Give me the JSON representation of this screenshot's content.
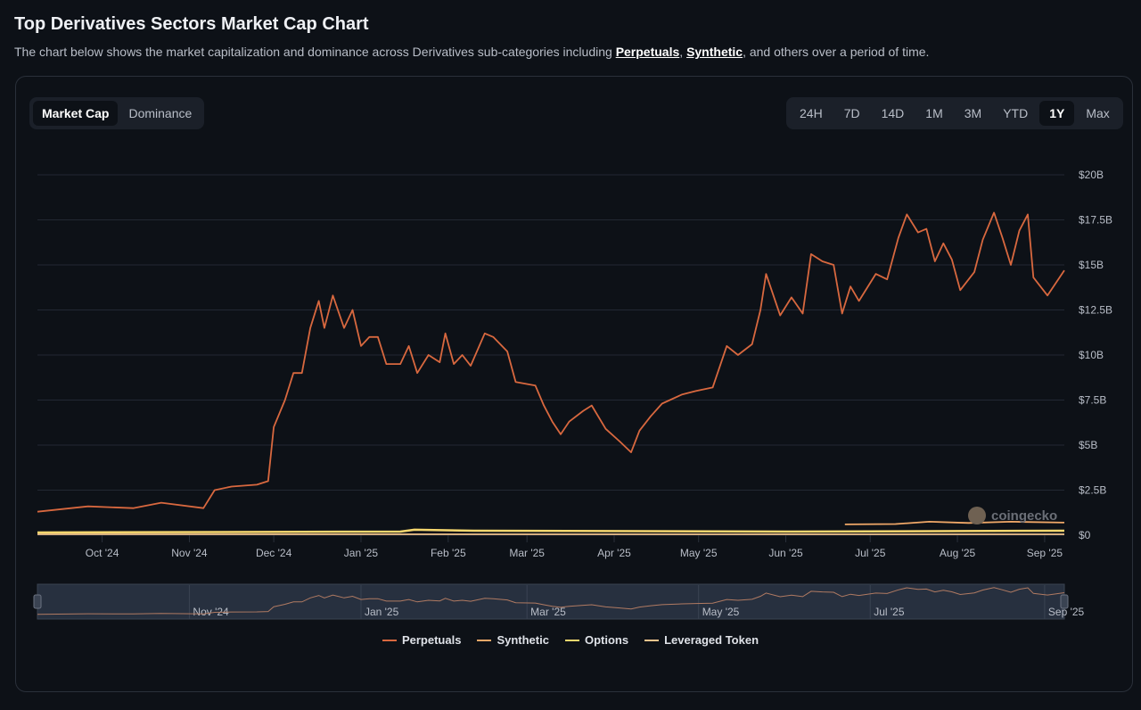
{
  "header": {
    "title": "Top Derivatives Sectors Market Cap Chart",
    "subtitle_pre": "The chart below shows the market capitalization and dominance across Derivatives sub-categories including ",
    "link1": "Perpetuals",
    "sep": ", ",
    "link2": "Synthetic",
    "subtitle_post": ", and others over a period of time."
  },
  "view_tabs": [
    {
      "label": "Market Cap",
      "active": true
    },
    {
      "label": "Dominance",
      "active": false
    }
  ],
  "range_tabs": [
    {
      "label": "24H"
    },
    {
      "label": "7D"
    },
    {
      "label": "14D"
    },
    {
      "label": "1M"
    },
    {
      "label": "3M"
    },
    {
      "label": "YTD"
    },
    {
      "label": "1Y",
      "active": true
    },
    {
      "label": "Max"
    }
  ],
  "watermark": "coingecko",
  "chart_data": {
    "type": "line",
    "title": "",
    "xlim": [
      "2024-09-08",
      "2025-09-08"
    ],
    "ylim": [
      0,
      20
    ],
    "y_unit": "B USD",
    "grid": true,
    "legend_placement": "bottom",
    "y_ticks": [
      "$0",
      "$2.5B",
      "$5B",
      "$7.5B",
      "$10B",
      "$12.5B",
      "$15B",
      "$17.5B",
      "$20B"
    ],
    "y_tick_values": [
      0,
      2.5,
      5,
      7.5,
      10,
      12.5,
      15,
      17.5,
      20
    ],
    "x_ticks": [
      {
        "label": "Oct '24",
        "date": "2024-10-01"
      },
      {
        "label": "Nov '24",
        "date": "2024-11-01"
      },
      {
        "label": "Dec '24",
        "date": "2024-12-01"
      },
      {
        "label": "Jan '25",
        "date": "2025-01-01"
      },
      {
        "label": "Feb '25",
        "date": "2025-02-01"
      },
      {
        "label": "Mar '25",
        "date": "2025-03-01"
      },
      {
        "label": "Apr '25",
        "date": "2025-04-01"
      },
      {
        "label": "May '25",
        "date": "2025-05-01"
      },
      {
        "label": "Jun '25",
        "date": "2025-06-01"
      },
      {
        "label": "Jul '25",
        "date": "2025-07-01"
      },
      {
        "label": "Aug '25",
        "date": "2025-08-01"
      },
      {
        "label": "Sep '25",
        "date": "2025-09-01"
      }
    ],
    "navigator_ticks": [
      {
        "label": "Nov '24",
        "date": "2024-11-01"
      },
      {
        "label": "Jan '25",
        "date": "2025-01-01"
      },
      {
        "label": "Mar '25",
        "date": "2025-03-01"
      },
      {
        "label": "May '25",
        "date": "2025-05-01"
      },
      {
        "label": "Jul '25",
        "date": "2025-07-01"
      },
      {
        "label": "Sep '25",
        "date": "2025-09-01"
      }
    ],
    "series": [
      {
        "name": "Perpetuals",
        "color": "#d8683f",
        "points": [
          [
            "2024-09-08",
            1.3
          ],
          [
            "2024-09-26",
            1.6
          ],
          [
            "2024-10-12",
            1.5
          ],
          [
            "2024-10-22",
            1.8
          ],
          [
            "2024-11-06",
            1.5
          ],
          [
            "2024-11-10",
            2.5
          ],
          [
            "2024-11-16",
            2.7
          ],
          [
            "2024-11-25",
            2.8
          ],
          [
            "2024-11-29",
            3.0
          ],
          [
            "2024-12-01",
            6.0
          ],
          [
            "2024-12-05",
            7.5
          ],
          [
            "2024-12-08",
            9.0
          ],
          [
            "2024-12-11",
            9.0
          ],
          [
            "2024-12-14",
            11.5
          ],
          [
            "2024-12-17",
            13.0
          ],
          [
            "2024-12-19",
            11.5
          ],
          [
            "2024-12-22",
            13.3
          ],
          [
            "2024-12-26",
            11.5
          ],
          [
            "2024-12-29",
            12.5
          ],
          [
            "2025-01-01",
            10.5
          ],
          [
            "2025-01-04",
            11.0
          ],
          [
            "2025-01-07",
            11.0
          ],
          [
            "2025-01-10",
            9.5
          ],
          [
            "2025-01-15",
            9.5
          ],
          [
            "2025-01-18",
            10.5
          ],
          [
            "2025-01-21",
            9.0
          ],
          [
            "2025-01-25",
            10.0
          ],
          [
            "2025-01-29",
            9.6
          ],
          [
            "2025-01-31",
            11.2
          ],
          [
            "2025-02-03",
            9.5
          ],
          [
            "2025-02-06",
            10.0
          ],
          [
            "2025-02-09",
            9.4
          ],
          [
            "2025-02-14",
            11.2
          ],
          [
            "2025-02-17",
            11.0
          ],
          [
            "2025-02-22",
            10.2
          ],
          [
            "2025-02-25",
            8.5
          ],
          [
            "2025-03-04",
            8.3
          ],
          [
            "2025-03-07",
            7.2
          ],
          [
            "2025-03-10",
            6.3
          ],
          [
            "2025-03-13",
            5.6
          ],
          [
            "2025-03-16",
            6.3
          ],
          [
            "2025-03-21",
            6.9
          ],
          [
            "2025-03-24",
            7.2
          ],
          [
            "2025-03-29",
            5.9
          ],
          [
            "2025-04-03",
            5.2
          ],
          [
            "2025-04-07",
            4.6
          ],
          [
            "2025-04-10",
            5.8
          ],
          [
            "2025-04-14",
            6.6
          ],
          [
            "2025-04-18",
            7.3
          ],
          [
            "2025-04-25",
            7.8
          ],
          [
            "2025-04-30",
            8.0
          ],
          [
            "2025-05-06",
            8.2
          ],
          [
            "2025-05-11",
            10.5
          ],
          [
            "2025-05-15",
            10.0
          ],
          [
            "2025-05-20",
            10.6
          ],
          [
            "2025-05-23",
            12.5
          ],
          [
            "2025-05-25",
            14.5
          ],
          [
            "2025-05-30",
            12.2
          ],
          [
            "2025-06-03",
            13.2
          ],
          [
            "2025-06-07",
            12.3
          ],
          [
            "2025-06-10",
            15.6
          ],
          [
            "2025-06-14",
            15.2
          ],
          [
            "2025-06-18",
            15.0
          ],
          [
            "2025-06-21",
            12.3
          ],
          [
            "2025-06-24",
            13.8
          ],
          [
            "2025-06-27",
            13.0
          ],
          [
            "2025-07-03",
            14.5
          ],
          [
            "2025-07-07",
            14.2
          ],
          [
            "2025-07-11",
            16.5
          ],
          [
            "2025-07-14",
            17.8
          ],
          [
            "2025-07-18",
            16.8
          ],
          [
            "2025-07-21",
            17.0
          ],
          [
            "2025-07-24",
            15.2
          ],
          [
            "2025-07-27",
            16.2
          ],
          [
            "2025-07-30",
            15.3
          ],
          [
            "2025-08-02",
            13.6
          ],
          [
            "2025-08-07",
            14.6
          ],
          [
            "2025-08-10",
            16.4
          ],
          [
            "2025-08-14",
            17.9
          ],
          [
            "2025-08-17",
            16.5
          ],
          [
            "2025-08-20",
            15.0
          ],
          [
            "2025-08-23",
            16.9
          ],
          [
            "2025-08-26",
            17.8
          ],
          [
            "2025-08-28",
            14.3
          ],
          [
            "2025-09-02",
            13.3
          ],
          [
            "2025-09-08",
            14.7
          ]
        ]
      },
      {
        "name": "Synthetic",
        "color": "#f0a868",
        "points": [
          [
            "2025-06-22",
            0.6
          ],
          [
            "2025-07-10",
            0.62
          ],
          [
            "2025-07-22",
            0.75
          ],
          [
            "2025-08-05",
            0.68
          ],
          [
            "2025-08-20",
            0.75
          ],
          [
            "2025-09-08",
            0.7
          ]
        ]
      },
      {
        "name": "Options",
        "color": "#f5d76e",
        "points": [
          [
            "2024-09-08",
            0.15
          ],
          [
            "2025-01-15",
            0.2
          ],
          [
            "2025-01-20",
            0.3
          ],
          [
            "2025-02-10",
            0.25
          ],
          [
            "2025-06-01",
            0.2
          ],
          [
            "2025-09-08",
            0.25
          ]
        ]
      },
      {
        "name": "Leveraged Token",
        "color": "#f2c48d",
        "points": [
          [
            "2024-09-08",
            0.05
          ],
          [
            "2025-09-08",
            0.05
          ]
        ]
      }
    ]
  }
}
